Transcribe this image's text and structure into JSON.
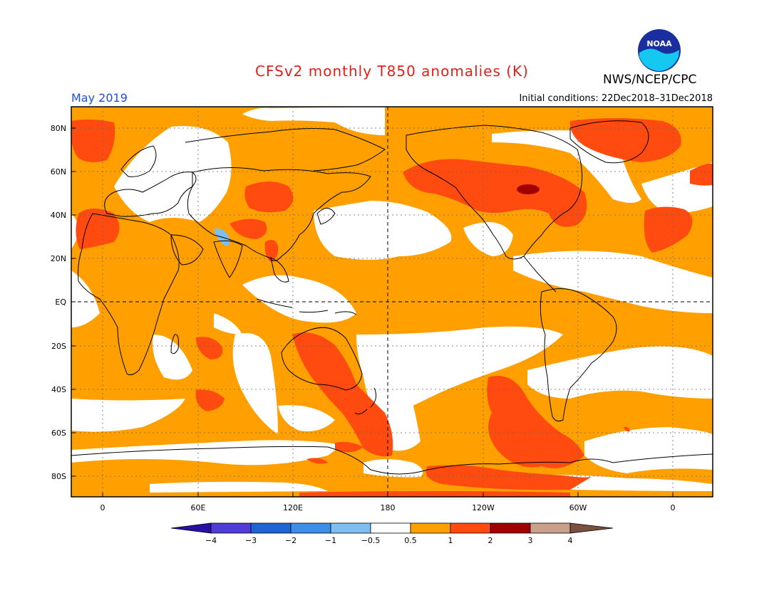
{
  "header": {
    "title": "CFSv2 monthly T850 anomalies (K)",
    "month": "May 2019",
    "initial_conditions": "Initial conditions: 22Dec2018–31Dec2018",
    "agency": "NWS/NCEP/CPC",
    "logo_text": "NOAA"
  },
  "axes": {
    "lat_labels": [
      "80N",
      "60N",
      "40N",
      "20N",
      "EQ",
      "20S",
      "40S",
      "60S",
      "80S"
    ],
    "lon_labels": [
      "0",
      "60E",
      "120E",
      "180",
      "120W",
      "60W",
      "0"
    ]
  },
  "colorbar": {
    "labels": [
      "−4",
      "−3",
      "−2",
      "−1",
      "−0.5",
      "0.5",
      "1",
      "2",
      "3",
      "4"
    ],
    "colors": [
      "#2a0fa5",
      "#4f3dd6",
      "#1e64d2",
      "#3c8ee6",
      "#7fbef0",
      "#ffffff",
      "#ffa000",
      "#ff4a10",
      "#a00000",
      "#c8a08c",
      "#7a5040"
    ]
  },
  "colors": {
    "orange": "#ffa000",
    "red": "#ff4a10",
    "darkred": "#a00000",
    "blue": "#7fbef0"
  }
}
